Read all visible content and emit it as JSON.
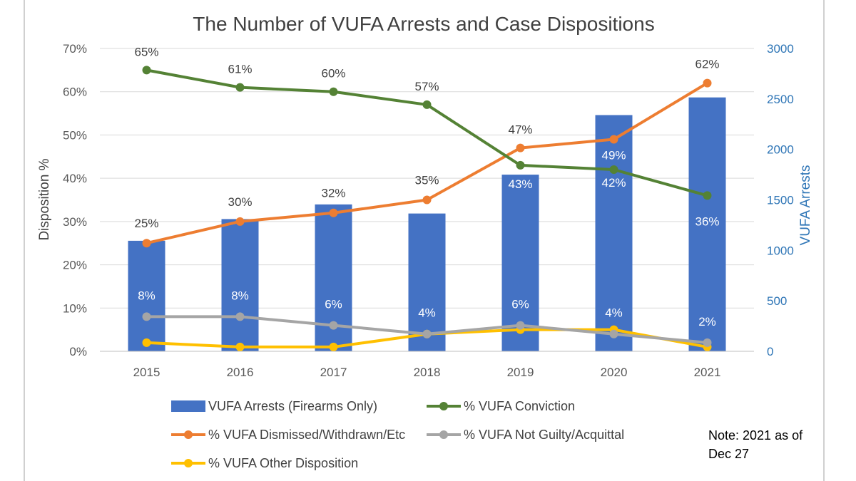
{
  "chart_data": {
    "type": "bar+line",
    "title": "The Number of VUFA Arrests and Case Dispositions",
    "ylabel": "Disposition %",
    "y2label": "VUFA Arrests",
    "categories": [
      "2015",
      "2016",
      "2017",
      "2018",
      "2019",
      "2020",
      "2021"
    ],
    "ylim": [
      0,
      70
    ],
    "yticks": [
      "0%",
      "10%",
      "20%",
      "30%",
      "40%",
      "50%",
      "60%",
      "70%"
    ],
    "y2lim": [
      0,
      3000
    ],
    "y2ticks": [
      "0",
      "500",
      "1000",
      "1500",
      "2000",
      "2500",
      "3000"
    ],
    "grid": true,
    "legend_placement": "bottom",
    "series": [
      {
        "name": "VUFA Arrests (Firearms Only)",
        "kind": "bar",
        "axis": "right",
        "color": "#4472C4",
        "values": [
          1095,
          1310,
          1455,
          1365,
          1750,
          2340,
          2515
        ]
      },
      {
        "name": "% VUFA Conviction",
        "kind": "line",
        "axis": "left",
        "color": "#548235",
        "values": [
          65,
          61,
          60,
          57,
          43,
          42,
          36
        ],
        "labels": [
          "65%",
          "61%",
          "60%",
          "57%",
          "43%",
          "42%",
          "36%"
        ]
      },
      {
        "name": "% VUFA Dismissed/Withdrawn/Etc",
        "kind": "line",
        "axis": "left",
        "color": "#ED7D31",
        "values": [
          25,
          30,
          32,
          35,
          47,
          49,
          62
        ],
        "labels": [
          "25%",
          "30%",
          "32%",
          "35%",
          "47%",
          "49%",
          "62%"
        ]
      },
      {
        "name": "% VUFA Not Guilty/Acquittal",
        "kind": "line",
        "axis": "left",
        "color": "#A5A5A5",
        "values": [
          8,
          8,
          6,
          4,
          6,
          4,
          2
        ],
        "labels": [
          "8%",
          "8%",
          "6%",
          "4%",
          "6%",
          "4%",
          "2%"
        ]
      },
      {
        "name": "% VUFA Other Disposition",
        "kind": "line",
        "axis": "left",
        "color": "#FFC000",
        "values": [
          2,
          1,
          1,
          4,
          5,
          5,
          1
        ]
      }
    ]
  },
  "note": "Note: 2021 as of Dec 27"
}
